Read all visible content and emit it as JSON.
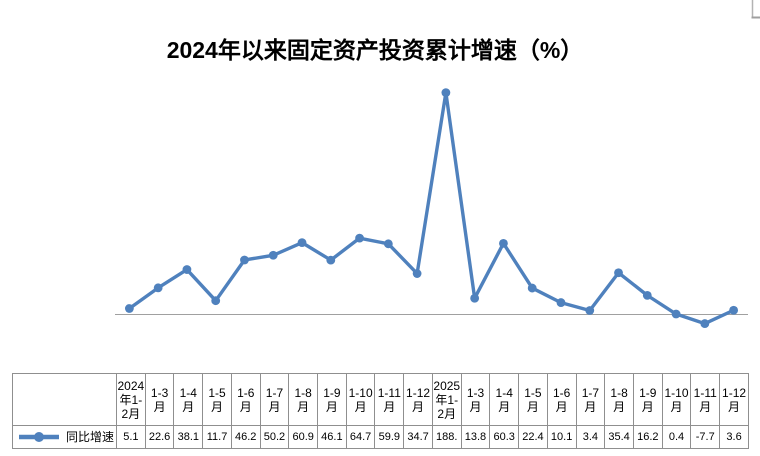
{
  "title": "2024年以来固定资产投资累计增速（%）",
  "legend": {
    "series_label": "同比增速"
  },
  "colors": {
    "line": "#4F81BD",
    "marker": "#4F81BD",
    "axis": "#a0a0a0",
    "table_border": "#8f8f8f",
    "corner_mark": "#b3b3b3",
    "title_text": "#000000"
  },
  "chart_data": {
    "type": "line",
    "title": "2024年以来固定资产投资累计增速（%）",
    "grid": false,
    "y_axis_visible": false,
    "baseline_value": 0,
    "legend_position": "table-left",
    "categories": [
      "2024年1-2月",
      "1-3月",
      "1-4月",
      "1-5月",
      "1-6月",
      "1-7月",
      "1-8月",
      "1-9月",
      "1-10月",
      "1-11月",
      "1-12月",
      "2025年1-2月",
      "1-3月",
      "1-4月",
      "1-5月",
      "1-6月",
      "1-7月",
      "1-8月",
      "1-9月",
      "1-10月",
      "1-11月",
      "1-12月"
    ],
    "series": [
      {
        "name": "同比增速",
        "color": "#4F81BD",
        "values": [
          5.1,
          22.6,
          38.1,
          11.7,
          46.2,
          50.2,
          60.9,
          46.1,
          64.7,
          59.9,
          34.7,
          188,
          13.8,
          60.3,
          22.4,
          10.1,
          3.4,
          35.4,
          16.2,
          0.4,
          -7.7,
          3.6
        ],
        "display_values": [
          "5.1",
          "22.6",
          "38.1",
          "11.7",
          "46.2",
          "50.2",
          "60.9",
          "46.1",
          "64.7",
          "59.9",
          "34.7",
          "188.",
          "13.8",
          "60.3",
          "22.4",
          "10.1",
          "3.4",
          "35.4",
          "16.2",
          "0.4",
          "-7.7",
          "3.6"
        ]
      }
    ]
  }
}
